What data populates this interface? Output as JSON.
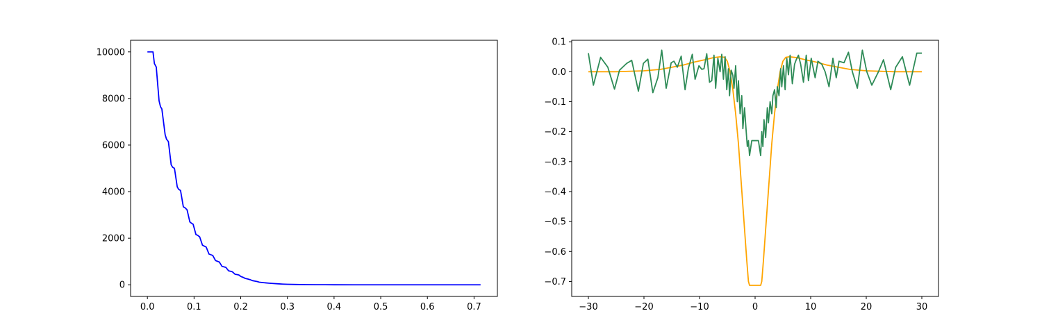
{
  "chart_data": [
    {
      "type": "line",
      "title": "",
      "xlabel": "",
      "ylabel": "",
      "xlim": [
        -0.036,
        0.75
      ],
      "ylim": [
        -500,
        10500
      ],
      "xticks": [
        0.0,
        0.1,
        0.2,
        0.3,
        0.4,
        0.5,
        0.6,
        0.7
      ],
      "xtick_labels": [
        "0.0",
        "0.1",
        "0.2",
        "0.3",
        "0.4",
        "0.5",
        "0.6",
        "0.7"
      ],
      "yticks": [
        0,
        2000,
        4000,
        6000,
        8000,
        10000
      ],
      "ytick_labels": [
        "0",
        "2000",
        "4000",
        "6000",
        "8000",
        "10000"
      ],
      "grid": false,
      "series": [
        {
          "color": "#0000ff",
          "x": [
            0.0,
            0.012,
            0.015,
            0.019,
            0.025,
            0.028,
            0.031,
            0.038,
            0.041,
            0.045,
            0.051,
            0.054,
            0.058,
            0.064,
            0.067,
            0.071,
            0.077,
            0.081,
            0.085,
            0.091,
            0.094,
            0.098,
            0.104,
            0.108,
            0.112,
            0.118,
            0.122,
            0.126,
            0.132,
            0.136,
            0.14,
            0.146,
            0.15,
            0.154,
            0.16,
            0.164,
            0.168,
            0.174,
            0.178,
            0.182,
            0.188,
            0.192,
            0.196,
            0.2,
            0.205,
            0.21,
            0.215,
            0.22,
            0.225,
            0.23,
            0.235,
            0.24,
            0.245,
            0.25,
            0.26,
            0.27,
            0.28,
            0.29,
            0.3,
            0.32,
            0.34,
            0.36,
            0.38,
            0.4,
            0.45,
            0.5,
            0.6,
            0.714
          ],
          "y": [
            10000,
            10000,
            9500,
            9350,
            7900,
            7650,
            7550,
            6450,
            6250,
            6150,
            5150,
            5050,
            5000,
            4200,
            4100,
            4050,
            3350,
            3300,
            3220,
            2700,
            2650,
            2600,
            2160,
            2120,
            2060,
            1700,
            1660,
            1620,
            1320,
            1290,
            1260,
            1040,
            1010,
            980,
            790,
            770,
            750,
            600,
            580,
            560,
            450,
            440,
            420,
            360,
            320,
            270,
            250,
            220,
            180,
            160,
            140,
            110,
            100,
            90,
            70,
            55,
            42,
            30,
            22,
            12,
            6,
            3,
            2,
            1,
            0,
            0,
            0,
            0
          ]
        }
      ]
    },
    {
      "type": "line",
      "title": "",
      "xlabel": "",
      "ylabel": "",
      "xlim": [
        -33,
        33
      ],
      "ylim": [
        -0.75,
        0.105
      ],
      "xticks": [
        -30,
        -20,
        -10,
        0,
        10,
        20,
        30
      ],
      "xtick_labels": [
        "−30",
        "−20",
        "−10",
        "0",
        "10",
        "20",
        "30"
      ],
      "yticks": [
        0.1,
        0.0,
        -0.1,
        -0.2,
        -0.3,
        -0.4,
        -0.5,
        -0.6,
        -0.7
      ],
      "ytick_labels": [
        "0.1",
        "0.0",
        "−0.1",
        "−0.2",
        "−0.3",
        "−0.4",
        "−0.5",
        "−0.6",
        "−0.7"
      ],
      "grid": false,
      "series": [
        {
          "color": "#ffa500",
          "x": [
            -30,
            -25,
            -20,
            -17,
            -15,
            -13,
            -11,
            -9,
            -7.5,
            -6.2,
            -5.5,
            -5,
            -4.5,
            -4,
            -3.5,
            -3,
            -2.5,
            -2,
            -1.5,
            -1.2,
            -1.0,
            -0.9,
            0.9,
            1.0,
            1.2,
            1.5,
            2,
            2.5,
            3,
            3.5,
            4,
            4.5,
            5,
            5.5,
            6.2,
            7.5,
            9,
            11,
            13,
            15,
            17,
            20,
            25,
            30
          ],
          "y": [
            0.0,
            0.0,
            0.003,
            0.008,
            0.015,
            0.022,
            0.032,
            0.04,
            0.047,
            0.05,
            0.048,
            0.035,
            0.0,
            -0.06,
            -0.14,
            -0.24,
            -0.37,
            -0.5,
            -0.63,
            -0.7,
            -0.713,
            -0.713,
            -0.713,
            -0.713,
            -0.7,
            -0.63,
            -0.5,
            -0.37,
            -0.24,
            -0.14,
            -0.06,
            0.0,
            0.035,
            0.048,
            0.05,
            0.047,
            0.04,
            0.032,
            0.022,
            0.015,
            0.008,
            0.003,
            0.0,
            0.0
          ]
        },
        {
          "color": "#2e8b57",
          "x": [
            -30.0,
            -29.1,
            -27.8,
            -26.5,
            -25.3,
            -24.4,
            -23.1,
            -22.2,
            -21.0,
            -20.1,
            -19.3,
            -18.4,
            -17.5,
            -16.8,
            -16.0,
            -15.1,
            -14.6,
            -14.0,
            -13.3,
            -12.6,
            -12.0,
            -11.3,
            -10.8,
            -10.1,
            -9.6,
            -9.2,
            -8.7,
            -8.2,
            -7.8,
            -7.4,
            -7.1,
            -6.7,
            -6.3,
            -6.0,
            -5.7,
            -5.4,
            -5.1,
            -4.8,
            -4.6,
            -4.3,
            -4.0,
            -3.8,
            -3.5,
            -3.2,
            -3.0,
            -2.7,
            -2.4,
            -2.2,
            -1.9,
            -1.6,
            -1.4,
            -1.2,
            -1.0,
            -0.6,
            0.6,
            1.0,
            1.2,
            1.4,
            1.6,
            1.9,
            2.2,
            2.4,
            2.7,
            3.0,
            3.2,
            3.5,
            3.8,
            4.0,
            4.3,
            4.6,
            4.8,
            5.1,
            5.4,
            5.7,
            6.0,
            6.3,
            6.7,
            7.1,
            7.4,
            7.8,
            8.2,
            8.7,
            9.2,
            9.6,
            10.1,
            10.8,
            11.3,
            12.0,
            12.6,
            13.3,
            14.0,
            14.6,
            15.1,
            16.0,
            16.8,
            17.5,
            18.4,
            19.3,
            20.1,
            21.0,
            22.2,
            23.1,
            24.4,
            25.3,
            26.5,
            27.8,
            29.1,
            30.0
          ],
          "y": [
            0.062,
            -0.045,
            0.048,
            0.015,
            -0.058,
            0.005,
            0.028,
            0.038,
            -0.065,
            0.028,
            0.042,
            -0.07,
            -0.02,
            0.072,
            -0.055,
            0.03,
            0.035,
            0.015,
            0.052,
            -0.06,
            0.012,
            0.058,
            -0.025,
            0.02,
            0.008,
            0.01,
            0.06,
            -0.035,
            -0.03,
            0.055,
            -0.055,
            0.045,
            0.0,
            0.058,
            -0.025,
            0.05,
            -0.06,
            0.01,
            -0.08,
            0.005,
            -0.012,
            -0.055,
            0.02,
            -0.1,
            -0.03,
            -0.14,
            -0.08,
            -0.19,
            -0.12,
            -0.2,
            -0.25,
            -0.23,
            -0.28,
            -0.23,
            -0.23,
            -0.28,
            -0.2,
            -0.25,
            -0.16,
            -0.22,
            -0.12,
            -0.17,
            -0.1,
            -0.14,
            -0.08,
            -0.06,
            -0.12,
            -0.05,
            -0.08,
            0.01,
            -0.05,
            0.02,
            -0.06,
            0.045,
            -0.01,
            0.055,
            -0.04,
            0.025,
            0.04,
            0.055,
            0.025,
            -0.035,
            0.055,
            -0.03,
            0.045,
            -0.02,
            0.035,
            0.025,
            0.0,
            -0.05,
            0.045,
            -0.02,
            0.035,
            0.03,
            0.065,
            0.0,
            -0.055,
            0.072,
            0.0,
            -0.045,
            0.0,
            0.04,
            -0.06,
            0.015,
            0.05,
            -0.045,
            0.062,
            0.062
          ]
        }
      ]
    }
  ]
}
